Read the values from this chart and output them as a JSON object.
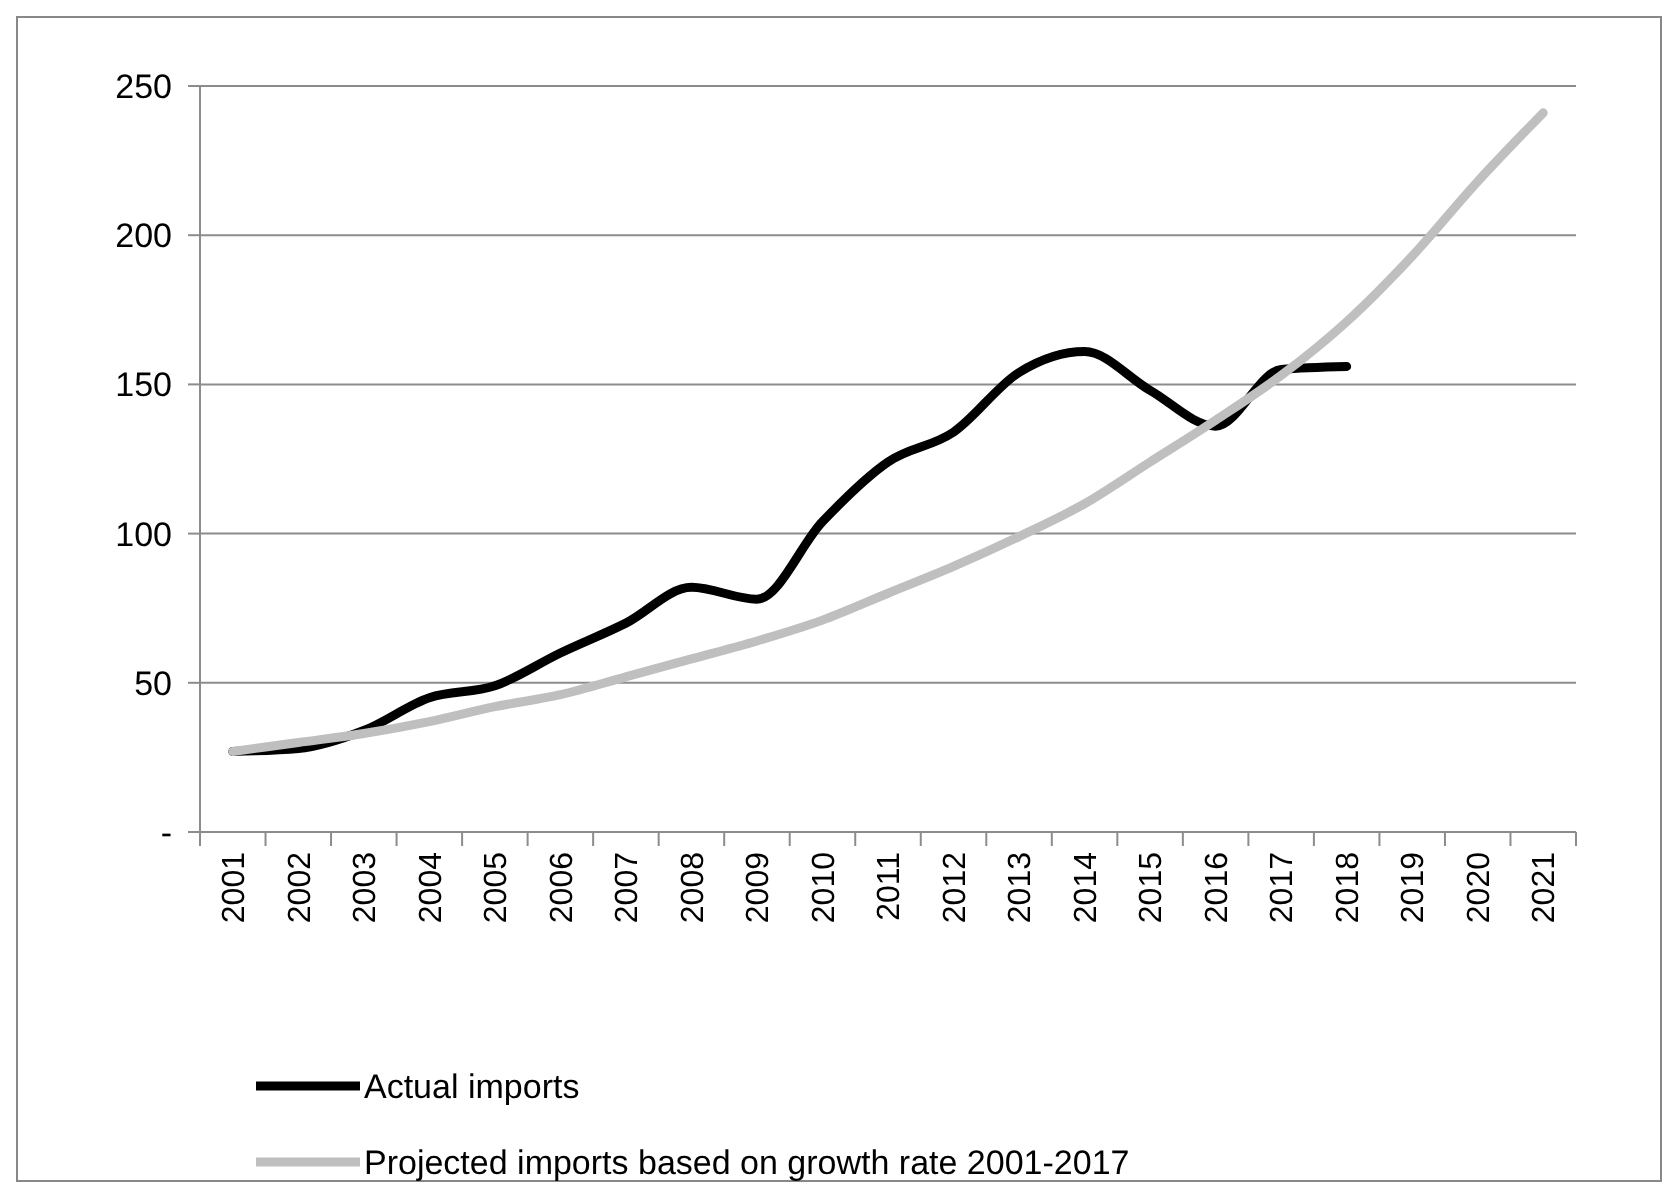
{
  "chart_data": {
    "type": "line",
    "categories": [
      "2001",
      "2002",
      "2003",
      "2004",
      "2005",
      "2006",
      "2007",
      "2008",
      "2009",
      "2010",
      "2011",
      "2012",
      "2013",
      "2014",
      "2015",
      "2016",
      "2017",
      "2018",
      "2019",
      "2020",
      "2021"
    ],
    "series": [
      {
        "name": "Actual imports",
        "color": "#000000",
        "values": [
          27,
          28,
          34,
          45,
          49,
          60,
          70,
          82,
          78,
          104,
          124,
          134,
          154,
          161,
          148,
          136,
          155,
          156,
          null,
          null,
          null
        ]
      },
      {
        "name": "Projected imports based on growth rate 2001-2017",
        "color": "#bfbfbf",
        "values": [
          27,
          30,
          33,
          37,
          42,
          46,
          52,
          58,
          64,
          71,
          80,
          89,
          99,
          110,
          124,
          138,
          153,
          171,
          193,
          218,
          241
        ]
      }
    ],
    "ylim": [
      0,
      250
    ],
    "yticks": [
      {
        "value": 0,
        "label": "-"
      },
      50,
      100,
      150,
      200,
      250
    ],
    "grid": "y",
    "legend": "bottom",
    "marker": "none",
    "line_style": "solid"
  }
}
